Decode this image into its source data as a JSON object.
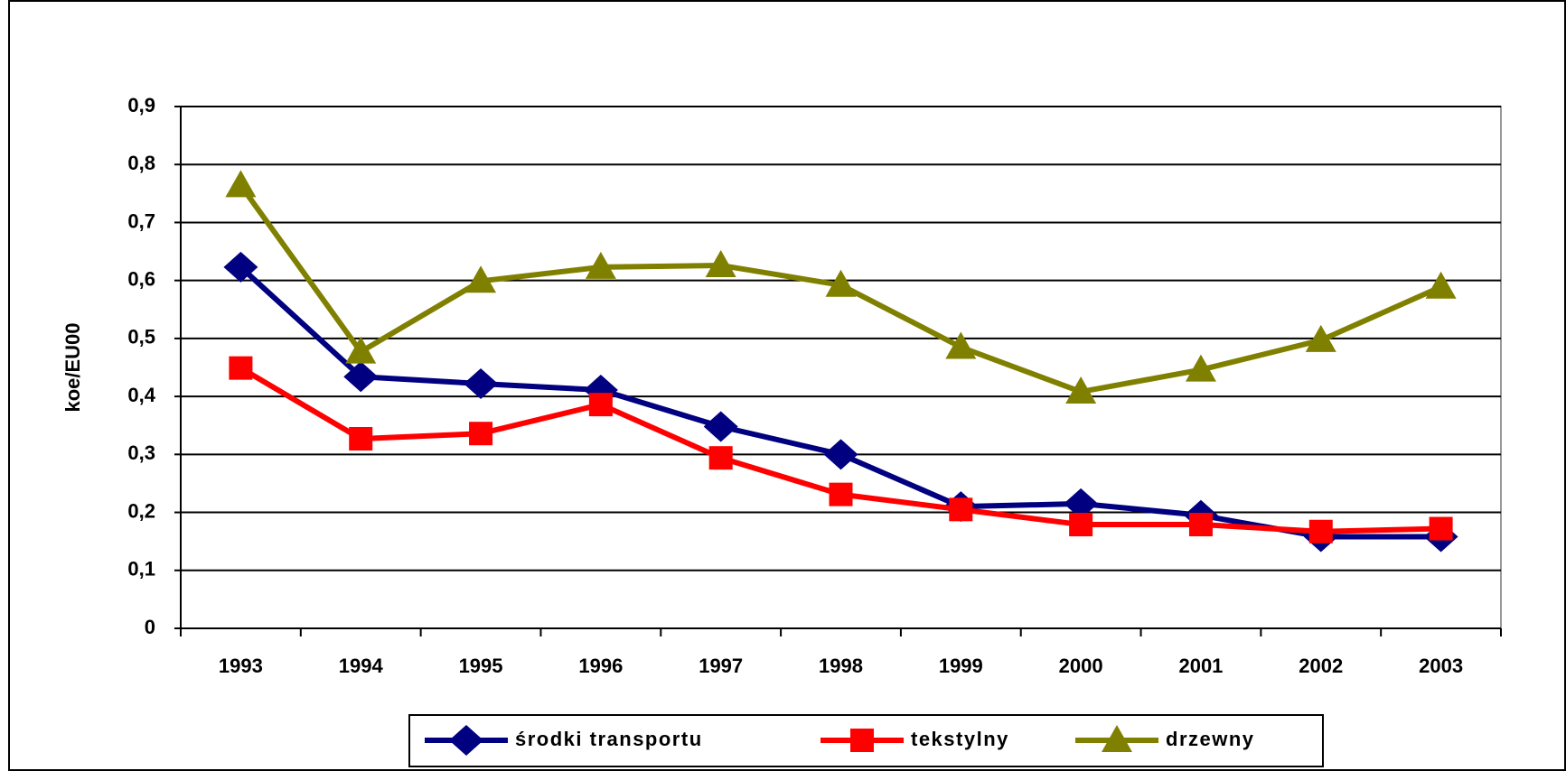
{
  "chart_data": {
    "type": "line",
    "y_label": "koe/EU00",
    "categories": [
      "1993",
      "1994",
      "1995",
      "1996",
      "1997",
      "1998",
      "1999",
      "2000",
      "2001",
      "2002",
      "2003"
    ],
    "series": [
      {
        "name": "środki transportu",
        "color": "#000080",
        "marker": "diamond",
        "values": [
          0.623,
          0.434,
          0.422,
          0.411,
          0.348,
          0.3,
          0.21,
          0.215,
          0.195,
          0.158,
          0.158
        ]
      },
      {
        "name": "tekstylny",
        "color": "#ff0000",
        "marker": "square",
        "values": [
          0.449,
          0.327,
          0.336,
          0.386,
          0.294,
          0.231,
          0.205,
          0.179,
          0.179,
          0.167,
          0.172
        ]
      },
      {
        "name": "drzewny",
        "color": "#808000",
        "marker": "triangle",
        "values": [
          0.764,
          0.477,
          0.599,
          0.623,
          0.626,
          0.592,
          0.485,
          0.408,
          0.446,
          0.497,
          0.589
        ]
      }
    ],
    "ylim": [
      0,
      0.9
    ],
    "yticks": [
      0,
      {
        "value": 0.1,
        "label": "0,1"
      },
      {
        "value": 0.2,
        "label": "0,2"
      },
      {
        "value": 0.3,
        "label": "0,3"
      },
      {
        "value": 0.4,
        "label": "0,4"
      },
      {
        "value": 0.5,
        "label": "0,5"
      },
      {
        "value": 0.6,
        "label": "0,6"
      },
      {
        "value": 0.7,
        "label": "0,7"
      },
      {
        "value": 0.8,
        "label": "0,8"
      },
      {
        "value": 0.9,
        "label": "0,9"
      }
    ],
    "grid": true,
    "legend": "bottom"
  }
}
